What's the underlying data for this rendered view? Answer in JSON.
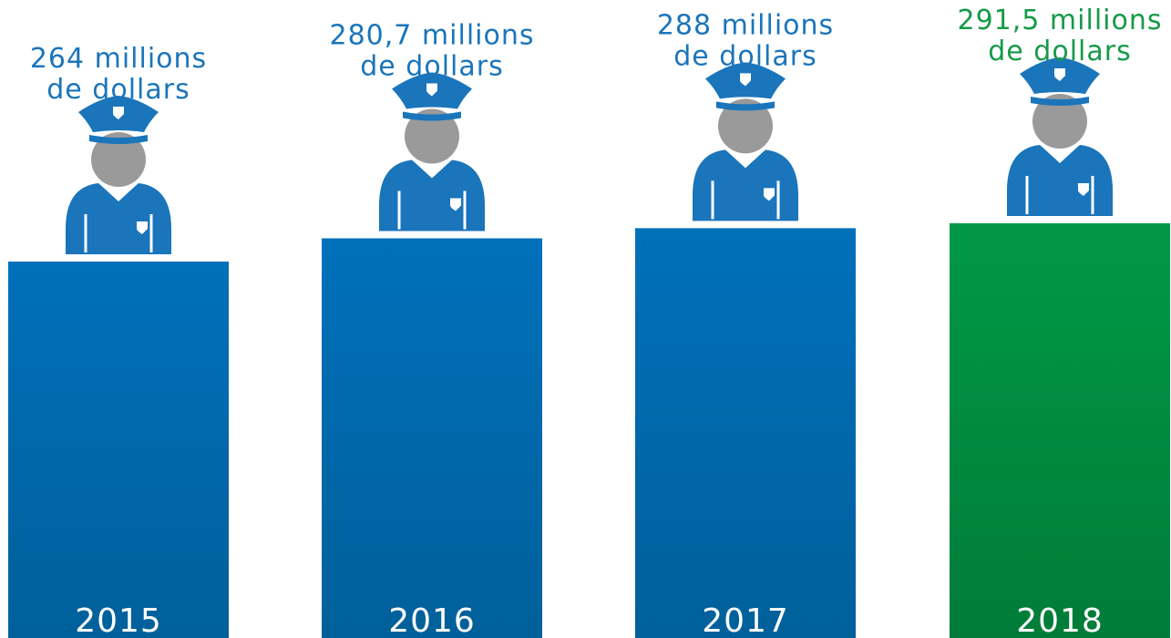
{
  "chart_data": {
    "type": "bar",
    "categories": [
      "2015",
      "2016",
      "2017",
      "2018"
    ],
    "values": [
      264,
      280.7,
      288,
      291.5
    ],
    "value_labels": [
      [
        "264 millions",
        "de dollars"
      ],
      [
        "280,7 millions",
        "de dollars"
      ],
      [
        "288 millions",
        "de dollars"
      ],
      [
        "291,5 millions",
        "de dollars"
      ]
    ],
    "title": "",
    "xlabel": "",
    "ylabel": "",
    "grid": false,
    "legend": "none",
    "icon": "police-officer-icon",
    "colors": {
      "bar_blue_top": "#0070bb",
      "bar_blue_bottom": "#00609a",
      "bar_green_top": "#009848",
      "bar_green_bottom": "#007c38",
      "label_blue": "#1a75bb",
      "label_green": "#169a48",
      "year_text": "#ffffff",
      "icon_blue": "#1a75bb",
      "icon_gray": "#9a9a9a"
    },
    "highlight_index": 3
  }
}
